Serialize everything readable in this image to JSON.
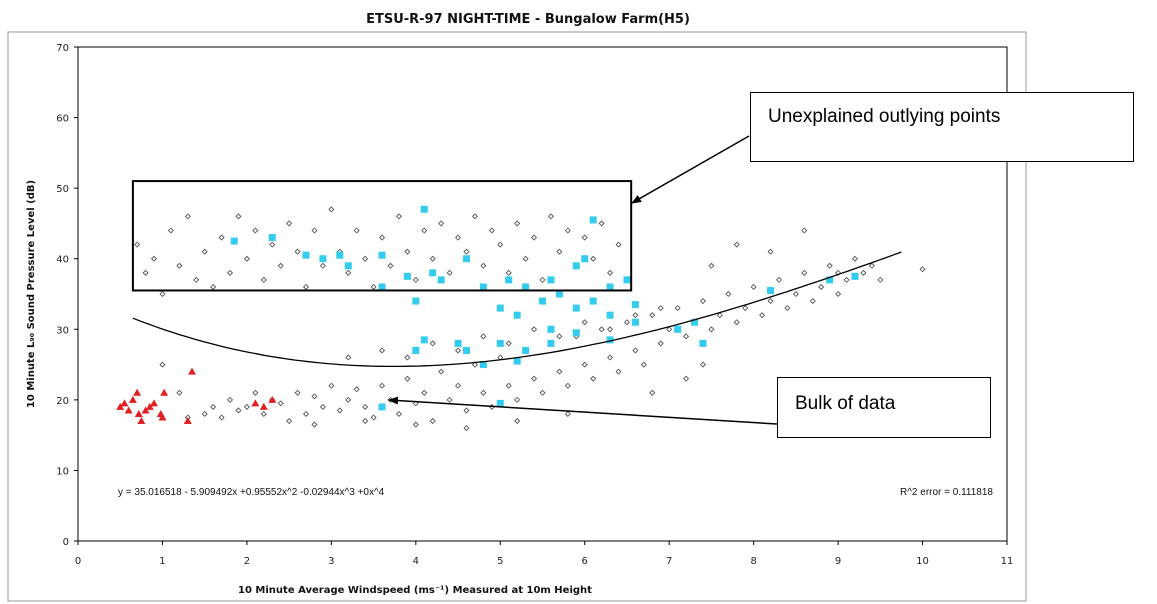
{
  "chart_data": {
    "type": "scatter",
    "title": "ETSU-R-97 NIGHT-TIME - Bungalow Farm(H5)",
    "xlabel": "10 Minute Average Windspeed (ms⁻¹) Measured at 10m Height",
    "ylabel": "10 Minute L₉₀ Sound Pressure Level (dB)",
    "xlim": [
      0,
      11
    ],
    "ylim": [
      0,
      70
    ],
    "x_ticks": [
      "0",
      "1",
      "2",
      "3",
      "4",
      "5",
      "6",
      "7",
      "8",
      "9",
      "10",
      "11"
    ],
    "y_ticks": [
      "0",
      "10",
      "20",
      "30",
      "40",
      "50",
      "60",
      "70"
    ],
    "grid": false,
    "series": [
      {
        "marker": "diamond",
        "color": "#555555",
        "note_values": "dense cloud of measurements",
        "points": [
          [
            0.7,
            42
          ],
          [
            0.8,
            38
          ],
          [
            0.9,
            40
          ],
          [
            1.0,
            35
          ],
          [
            1.1,
            44
          ],
          [
            1.2,
            39
          ],
          [
            1.3,
            46
          ],
          [
            1.4,
            37
          ],
          [
            1.5,
            41
          ],
          [
            1.6,
            36
          ],
          [
            1.7,
            43
          ],
          [
            1.8,
            38
          ],
          [
            1.9,
            46
          ],
          [
            2.0,
            40
          ],
          [
            2.1,
            44
          ],
          [
            2.2,
            37
          ],
          [
            2.3,
            42
          ],
          [
            2.4,
            39
          ],
          [
            2.5,
            45
          ],
          [
            2.6,
            41
          ],
          [
            2.7,
            36
          ],
          [
            2.8,
            44
          ],
          [
            2.9,
            39
          ],
          [
            3.0,
            47
          ],
          [
            3.1,
            41
          ],
          [
            3.2,
            38
          ],
          [
            3.3,
            44
          ],
          [
            3.4,
            40
          ],
          [
            3.5,
            36
          ],
          [
            3.6,
            43
          ],
          [
            3.7,
            39
          ],
          [
            3.8,
            46
          ],
          [
            3.9,
            41
          ],
          [
            4.0,
            37
          ],
          [
            4.1,
            44
          ],
          [
            4.2,
            40
          ],
          [
            4.3,
            45
          ],
          [
            4.4,
            38
          ],
          [
            4.5,
            43
          ],
          [
            4.6,
            41
          ],
          [
            4.7,
            46
          ],
          [
            4.8,
            39
          ],
          [
            4.9,
            44
          ],
          [
            5.0,
            42
          ],
          [
            5.1,
            38
          ],
          [
            5.2,
            45
          ],
          [
            5.3,
            40
          ],
          [
            5.4,
            43
          ],
          [
            5.5,
            37
          ],
          [
            5.6,
            46
          ],
          [
            5.7,
            41
          ],
          [
            5.8,
            44
          ],
          [
            5.9,
            39
          ],
          [
            6.0,
            43
          ],
          [
            6.1,
            40
          ],
          [
            6.2,
            45
          ],
          [
            6.3,
            38
          ],
          [
            6.4,
            42
          ],
          [
            6.5,
            37
          ],
          [
            1.5,
            18
          ],
          [
            1.6,
            19
          ],
          [
            1.7,
            17.5
          ],
          [
            1.8,
            20
          ],
          [
            1.9,
            18.5
          ],
          [
            2.0,
            19
          ],
          [
            2.1,
            21
          ],
          [
            2.2,
            18
          ],
          [
            2.3,
            20
          ],
          [
            2.4,
            19.5
          ],
          [
            2.5,
            17
          ],
          [
            2.6,
            21
          ],
          [
            2.7,
            18
          ],
          [
            2.8,
            20.5
          ],
          [
            2.9,
            19
          ],
          [
            3.0,
            22
          ],
          [
            3.1,
            18.5
          ],
          [
            3.2,
            20
          ],
          [
            3.3,
            21.5
          ],
          [
            3.4,
            19
          ],
          [
            3.5,
            17.5
          ],
          [
            3.6,
            22
          ],
          [
            3.7,
            20
          ],
          [
            3.8,
            18
          ],
          [
            3.9,
            23
          ],
          [
            4.0,
            19.5
          ],
          [
            4.1,
            21
          ],
          [
            4.2,
            17
          ],
          [
            4.3,
            24
          ],
          [
            4.4,
            20
          ],
          [
            4.5,
            22
          ],
          [
            4.6,
            18.5
          ],
          [
            4.7,
            25
          ],
          [
            4.8,
            21
          ],
          [
            4.9,
            19
          ],
          [
            5.0,
            26
          ],
          [
            5.1,
            22
          ],
          [
            5.2,
            20
          ],
          [
            5.3,
            27
          ],
          [
            5.4,
            23
          ],
          [
            5.5,
            21
          ],
          [
            5.6,
            28
          ],
          [
            5.7,
            24
          ],
          [
            5.8,
            22
          ],
          [
            5.9,
            29
          ],
          [
            6.0,
            25
          ],
          [
            6.1,
            23
          ],
          [
            6.2,
            30
          ],
          [
            6.3,
            26
          ],
          [
            6.4,
            24
          ],
          [
            6.5,
            31
          ],
          [
            6.6,
            27
          ],
          [
            6.7,
            25
          ],
          [
            6.8,
            32
          ],
          [
            6.9,
            28
          ],
          [
            7.0,
            30
          ],
          [
            7.1,
            33
          ],
          [
            7.2,
            29
          ],
          [
            7.3,
            31
          ],
          [
            7.4,
            34
          ],
          [
            7.5,
            30
          ],
          [
            7.6,
            32
          ],
          [
            7.7,
            35
          ],
          [
            7.8,
            31
          ],
          [
            7.9,
            33
          ],
          [
            8.0,
            36
          ],
          [
            8.1,
            32
          ],
          [
            8.2,
            34
          ],
          [
            8.3,
            37
          ],
          [
            8.4,
            33
          ],
          [
            8.5,
            35
          ],
          [
            8.6,
            38
          ],
          [
            8.7,
            34
          ],
          [
            8.8,
            36
          ],
          [
            8.9,
            39
          ],
          [
            9.0,
            35
          ],
          [
            9.1,
            37
          ],
          [
            9.2,
            40
          ],
          [
            9.3,
            38
          ],
          [
            9.4,
            39
          ],
          [
            9.5,
            37
          ],
          [
            10.0,
            38.5
          ],
          [
            3.2,
            26
          ],
          [
            3.6,
            27
          ],
          [
            3.9,
            26
          ],
          [
            4.2,
            28
          ],
          [
            4.5,
            27
          ],
          [
            4.8,
            29
          ],
          [
            5.1,
            28
          ],
          [
            5.4,
            30
          ],
          [
            5.7,
            29
          ],
          [
            6.0,
            31
          ],
          [
            6.3,
            30
          ],
          [
            6.6,
            32
          ],
          [
            6.9,
            33
          ],
          [
            4.0,
            16.5
          ],
          [
            4.6,
            16
          ],
          [
            5.2,
            17
          ],
          [
            5.8,
            18
          ],
          [
            3.4,
            17
          ],
          [
            2.8,
            16.5
          ],
          [
            1.3,
            17.5
          ],
          [
            1.0,
            25
          ],
          [
            1.2,
            21
          ],
          [
            7.8,
            42
          ],
          [
            8.6,
            44
          ],
          [
            8.2,
            41
          ],
          [
            9.0,
            38
          ],
          [
            7.5,
            39
          ],
          [
            7.2,
            23
          ],
          [
            7.4,
            25
          ],
          [
            6.8,
            21
          ]
        ]
      },
      {
        "marker": "square",
        "color": "#33ccee",
        "points": [
          [
            1.85,
            42.5
          ],
          [
            2.3,
            43
          ],
          [
            2.7,
            40.5
          ],
          [
            2.9,
            40
          ],
          [
            3.1,
            40.5
          ],
          [
            3.2,
            39
          ],
          [
            3.6,
            40.5
          ],
          [
            3.9,
            37.5
          ],
          [
            4.1,
            47
          ],
          [
            4.2,
            38
          ],
          [
            4.3,
            37
          ],
          [
            4.6,
            40
          ],
          [
            4.8,
            36
          ],
          [
            5.1,
            37
          ],
          [
            5.3,
            36
          ],
          [
            5.6,
            37
          ],
          [
            5.7,
            35
          ],
          [
            5.9,
            39
          ],
          [
            6.0,
            40
          ],
          [
            6.1,
            45.5
          ],
          [
            6.3,
            36
          ],
          [
            6.5,
            37
          ],
          [
            3.6,
            36
          ],
          [
            4.0,
            34
          ],
          [
            5.0,
            33
          ],
          [
            5.2,
            32
          ],
          [
            5.5,
            34
          ],
          [
            5.9,
            33
          ],
          [
            6.1,
            34
          ],
          [
            6.3,
            32
          ],
          [
            6.6,
            33.5
          ],
          [
            4.0,
            27
          ],
          [
            4.1,
            28.5
          ],
          [
            4.5,
            28
          ],
          [
            4.6,
            27
          ],
          [
            4.8,
            25
          ],
          [
            5.0,
            28
          ],
          [
            5.2,
            25.5
          ],
          [
            5.3,
            27
          ],
          [
            5.6,
            28
          ],
          [
            5.9,
            29.5
          ],
          [
            6.3,
            28.5
          ],
          [
            6.6,
            31
          ],
          [
            7.1,
            30
          ],
          [
            7.3,
            31
          ],
          [
            7.4,
            28
          ],
          [
            8.2,
            35.5
          ],
          [
            8.9,
            37
          ],
          [
            9.2,
            37.5
          ],
          [
            3.6,
            19
          ],
          [
            5.0,
            19.5
          ],
          [
            5.6,
            30
          ]
        ]
      },
      {
        "marker": "triangle",
        "color": "#e02020",
        "points": [
          [
            0.5,
            19
          ],
          [
            0.55,
            19.5
          ],
          [
            0.6,
            18.5
          ],
          [
            0.7,
            21
          ],
          [
            0.72,
            18
          ],
          [
            0.75,
            17
          ],
          [
            0.8,
            18.5
          ],
          [
            0.85,
            19
          ],
          [
            0.9,
            19.5
          ],
          [
            0.98,
            18
          ],
          [
            1.0,
            17.5
          ],
          [
            1.02,
            21
          ],
          [
            1.3,
            17
          ],
          [
            1.35,
            24
          ],
          [
            2.1,
            19.5
          ],
          [
            2.2,
            19
          ],
          [
            2.3,
            20
          ],
          [
            0.65,
            20
          ]
        ]
      }
    ],
    "trendline": {
      "coefficients": [
        35.016518,
        -5.909492,
        0.95552,
        -0.02944,
        0
      ],
      "x_range": [
        0.65,
        9.75
      ]
    },
    "annotations": {
      "equation": "y = 35.016518 - 5.909492x +0.95552x^2 -0.02944x^3 +0x^4",
      "r2": "R^2 error = 0.111818",
      "callout_outliers": "Unexplained outlying points",
      "callout_bulk": "Bulk of data"
    },
    "highlight_box": {
      "x": [
        0.65,
        6.55
      ],
      "y": [
        35.5,
        51
      ]
    }
  }
}
